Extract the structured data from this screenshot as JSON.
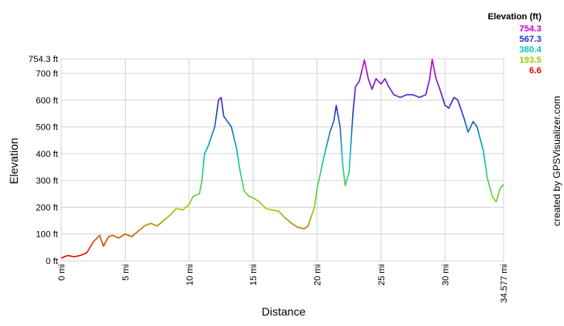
{
  "chart_data": {
    "type": "line",
    "x_label": "Distance",
    "y_label": "Elevation",
    "credit": "created by GPSVisualizer.com",
    "legend": {
      "title": "Elevation (ft)",
      "items": [
        {
          "value": 754.3,
          "color": "#cc00cc"
        },
        {
          "value": 567.3,
          "color": "#2233cc"
        },
        {
          "value": 380.4,
          "color": "#00ccaa"
        },
        {
          "value": 193.5,
          "color": "#99cc00"
        },
        {
          "value": 6.6,
          "color": "#ee0000"
        }
      ]
    },
    "x": [
      0,
      0.5,
      1,
      1.5,
      2,
      2.5,
      3,
      3.3,
      3.7,
      4,
      4.5,
      5,
      5.5,
      6,
      6.5,
      7,
      7.5,
      8,
      8.5,
      9,
      9.5,
      10,
      10.3,
      10.8,
      11,
      11.2,
      11.5,
      12,
      12.3,
      12.5,
      12.7,
      13,
      13.3,
      13.7,
      14,
      14.3,
      14.7,
      15,
      15.5,
      16,
      17,
      17.5,
      18,
      18.5,
      19,
      19.3,
      19.5,
      19.8,
      20,
      20.5,
      21,
      21.3,
      21.5,
      21.8,
      22,
      22.2,
      22.5,
      22.8,
      23,
      23.3,
      23.7,
      24,
      24.3,
      24.6,
      25,
      25.3,
      25.6,
      26,
      26.5,
      27,
      27.5,
      28,
      28.5,
      28.8,
      29,
      29.3,
      29.6,
      30,
      30.3,
      30.7,
      31,
      31.5,
      31.8,
      32.2,
      32.5,
      33,
      33.3,
      33.7,
      34,
      34.3,
      34.577
    ],
    "values": [
      10,
      20,
      15,
      20,
      30,
      70,
      95,
      55,
      90,
      95,
      85,
      100,
      90,
      110,
      130,
      140,
      130,
      150,
      170,
      195,
      190,
      210,
      240,
      250,
      300,
      400,
      430,
      500,
      600,
      610,
      540,
      520,
      500,
      420,
      330,
      260,
      240,
      235,
      220,
      195,
      185,
      160,
      140,
      125,
      120,
      130,
      160,
      200,
      270,
      380,
      480,
      520,
      580,
      500,
      360,
      280,
      330,
      550,
      650,
      670,
      750,
      680,
      640,
      680,
      660,
      680,
      650,
      620,
      610,
      620,
      620,
      610,
      620,
      680,
      752,
      680,
      640,
      580,
      570,
      610,
      600,
      530,
      480,
      520,
      500,
      410,
      310,
      240,
      220,
      270,
      285
    ],
    "xlim": [
      0,
      34.577
    ],
    "xticks": [
      {
        "value": 0,
        "label": "0 mi"
      },
      {
        "value": 5,
        "label": "5 mi"
      },
      {
        "value": 10,
        "label": "10 mi"
      },
      {
        "value": 15,
        "label": "15 mi"
      },
      {
        "value": 20,
        "label": "20 mi"
      },
      {
        "value": 25,
        "label": "25 mi"
      },
      {
        "value": 30,
        "label": "30 mi"
      },
      {
        "value": 34.577,
        "label": "34.577 mi"
      }
    ],
    "ylim": [
      0,
      754.3
    ],
    "yticks": [
      {
        "value": 0,
        "label": "0 ft"
      },
      {
        "value": 100,
        "label": "100 ft"
      },
      {
        "value": 200,
        "label": "200 ft"
      },
      {
        "value": 300,
        "label": "300 ft"
      },
      {
        "value": 400,
        "label": "400 ft"
      },
      {
        "value": 500,
        "label": "500 ft"
      },
      {
        "value": 600,
        "label": "600 ft"
      },
      {
        "value": 700,
        "label": "700 ft"
      },
      {
        "value": 754.3,
        "label": "754.3 ft"
      }
    ],
    "grid": true
  }
}
